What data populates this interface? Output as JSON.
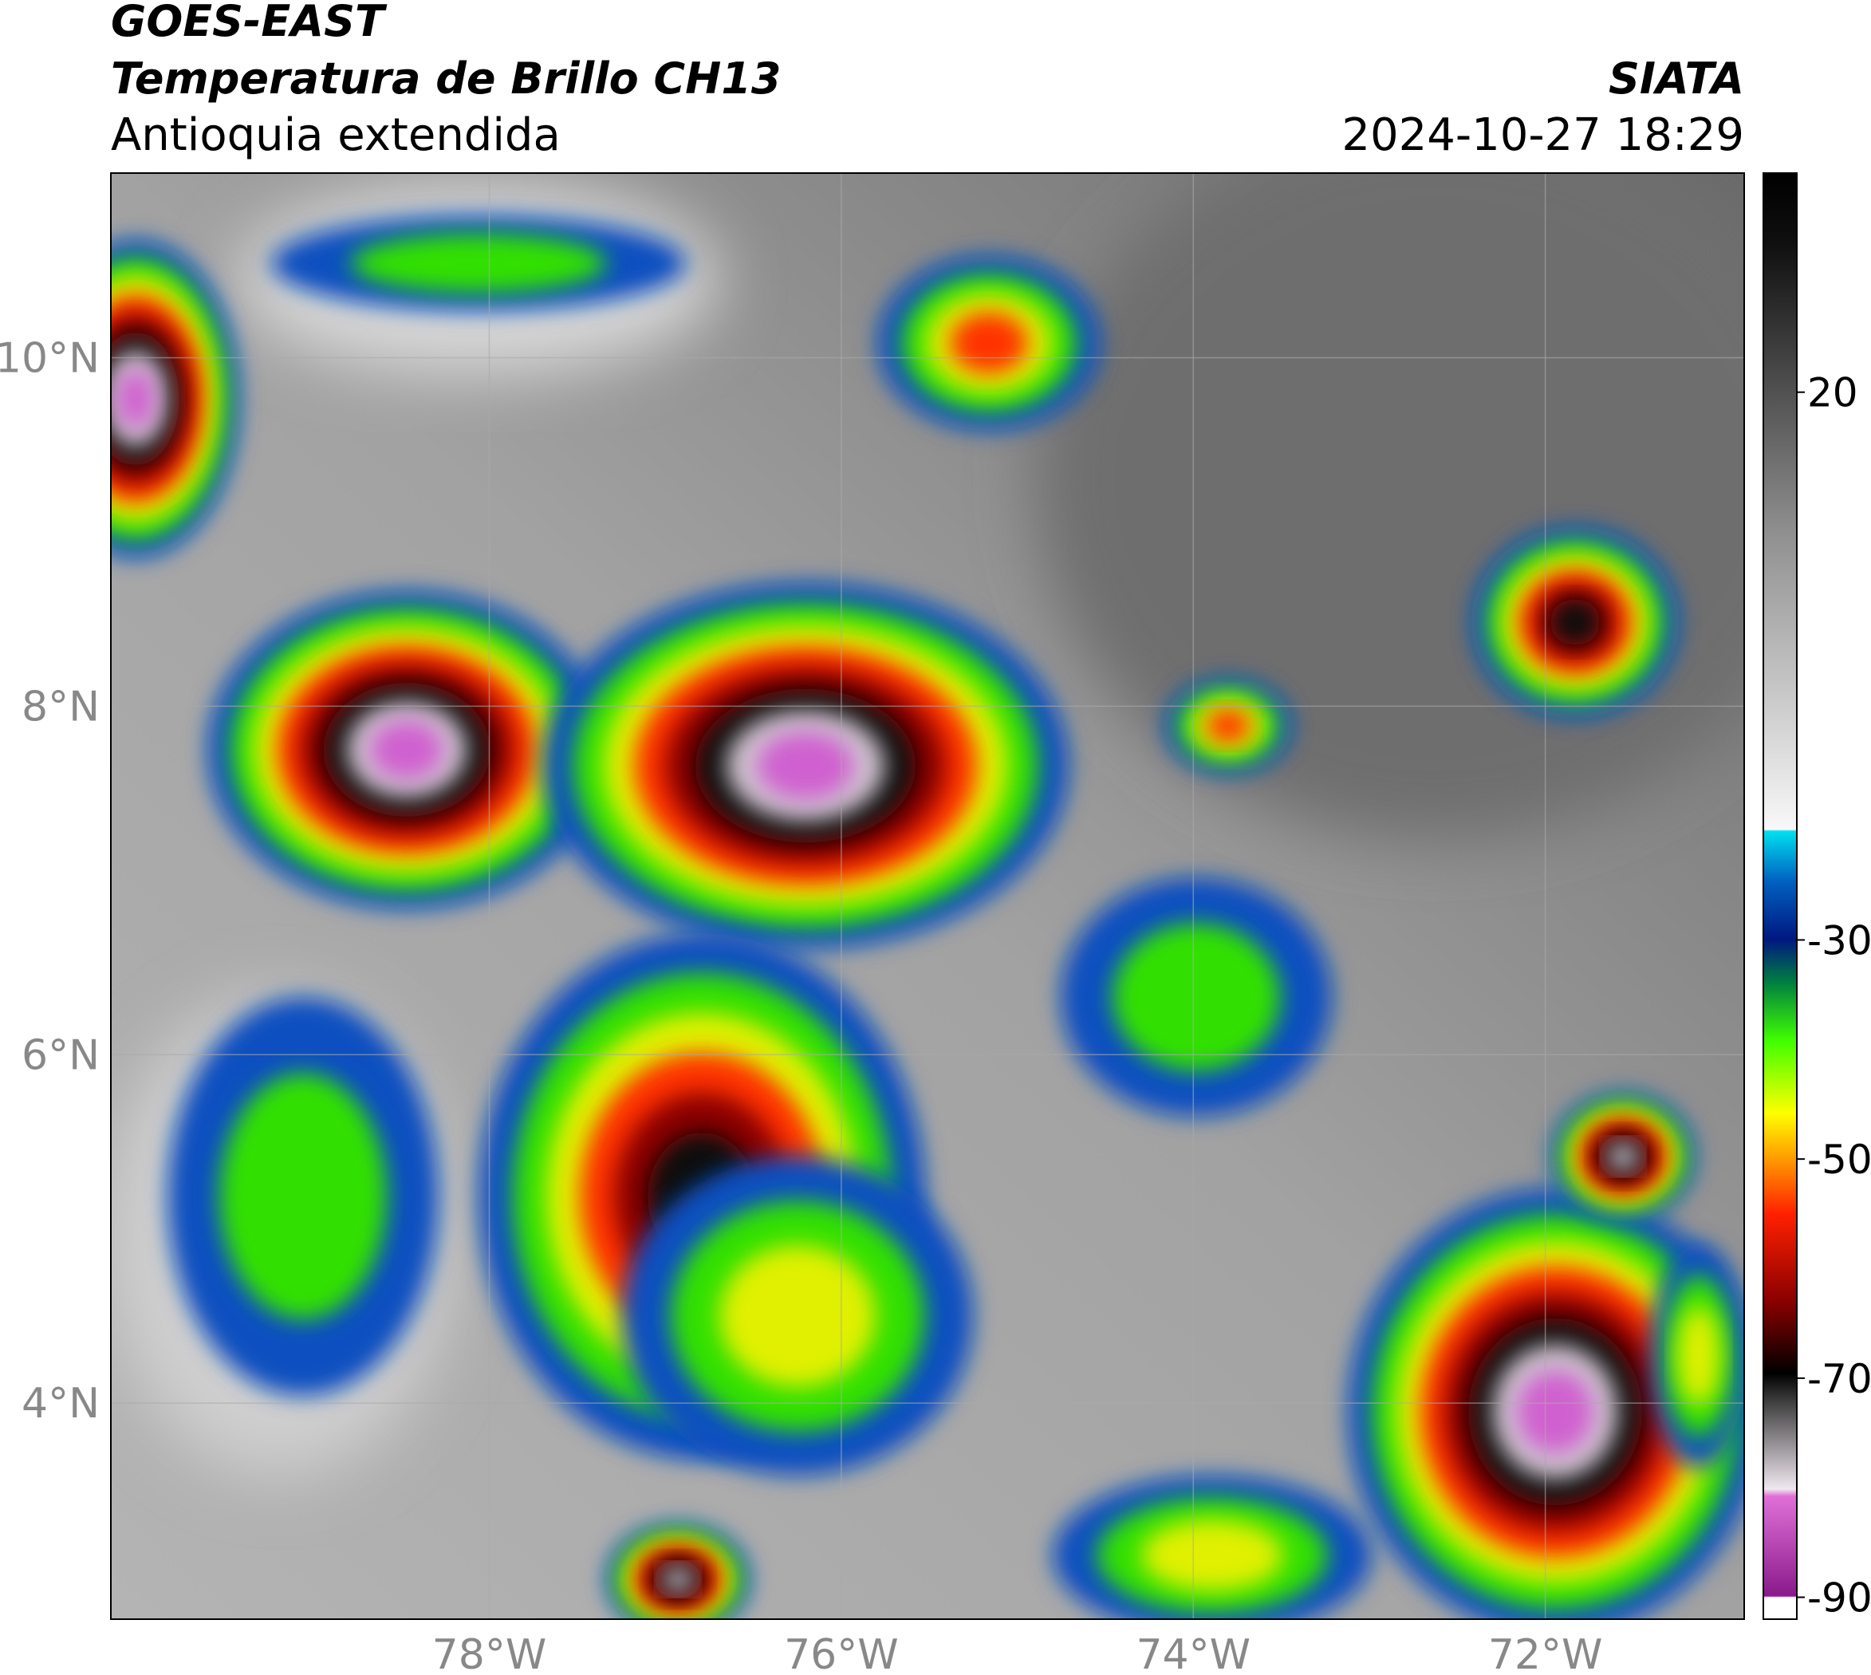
{
  "header": {
    "title": "GOES-EAST",
    "subtitle": "Temperatura de Brillo CH13",
    "region": "Antioquia extendida",
    "source": "SIATA",
    "datetime": "2024-10-27 18:29"
  },
  "map": {
    "latlim": [
      2.76,
      11.06
    ],
    "lonlim": [
      -80.15,
      -70.87
    ],
    "lat_ticks": [
      {
        "value": 10,
        "label": "10°N"
      },
      {
        "value": 8,
        "label": "8°N"
      },
      {
        "value": 6,
        "label": "6°N"
      },
      {
        "value": 4,
        "label": "4°N"
      }
    ],
    "lon_ticks": [
      {
        "value": -78,
        "label": "78°W"
      },
      {
        "value": -76,
        "label": "76°W"
      },
      {
        "value": -74,
        "label": "74°W"
      },
      {
        "value": -72,
        "label": "72°W"
      }
    ]
  },
  "colorbar": {
    "lim": [
      -92,
      40
    ],
    "ticks": [
      20,
      -30,
      -50,
      -70,
      -90
    ]
  }
}
